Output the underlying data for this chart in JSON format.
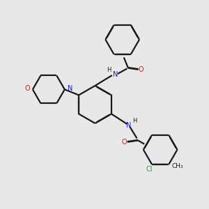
{
  "bg_color": "#e8e8e8",
  "bond_color": "#1a1a1a",
  "N_color": "#1a1acc",
  "O_color": "#cc2020",
  "Cl_color": "#3a9a3a",
  "lw": 1.6,
  "dbo": 0.012,
  "xlim": [
    0,
    10
  ],
  "ylim": [
    -1,
    10
  ],
  "figsize": [
    3.0,
    3.0
  ],
  "dpi": 100
}
